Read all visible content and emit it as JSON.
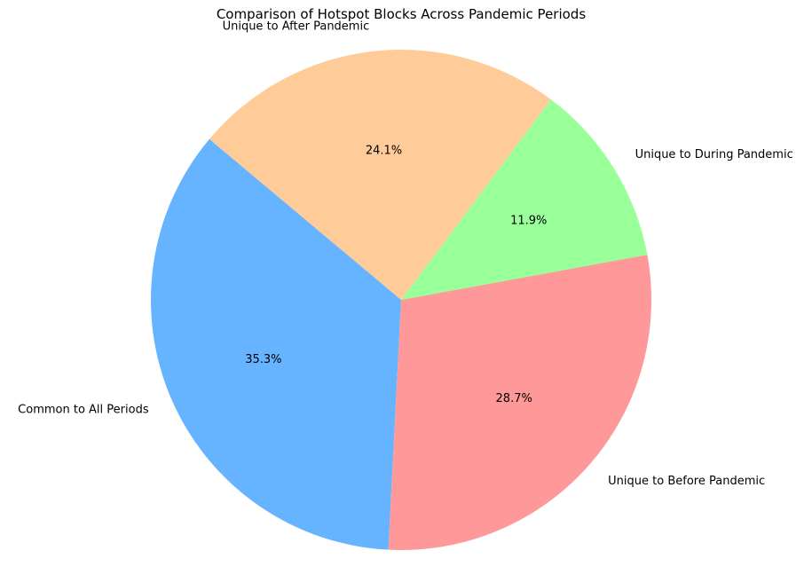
{
  "chart_data": {
    "type": "pie",
    "title": "Comparison of Hotspot Blocks Across Pandemic Periods",
    "slices": [
      {
        "label": "Common to All Periods",
        "value": 35.3,
        "pct_label": "35.3%",
        "color": "#66b3ff"
      },
      {
        "label": "Unique to Before Pandemic",
        "value": 28.7,
        "pct_label": "28.7%",
        "color": "#ff9999"
      },
      {
        "label": "Unique to During Pandemic",
        "value": 11.9,
        "pct_label": "11.9%",
        "color": "#99ff99"
      },
      {
        "label": "Unique to After Pandemic",
        "value": 24.1,
        "pct_label": "24.1%",
        "color": "#ffcc99"
      }
    ],
    "start_angle_deg": 140,
    "direction": "counterclockwise",
    "legend": "none"
  }
}
